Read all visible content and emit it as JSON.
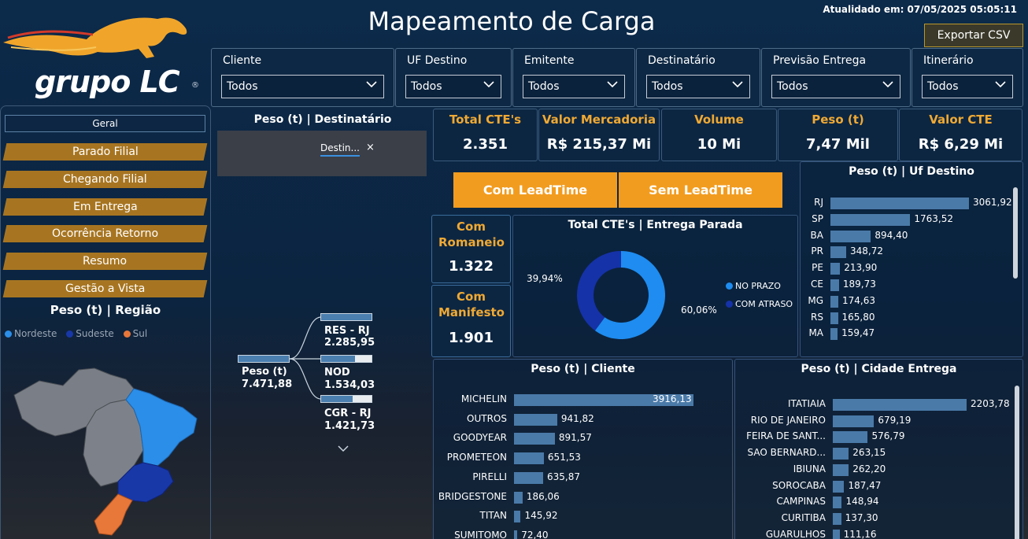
{
  "header": {
    "title": "Mapeamento de Carga",
    "updated": "Atualidado em: 07/05/2025 05:05:11",
    "export_label": "Exportar CSV"
  },
  "logo": {
    "text": "grupo LC",
    "reg": "®"
  },
  "filters": [
    {
      "label": "Cliente",
      "value": "Todos"
    },
    {
      "label": "UF Destino",
      "value": "Todos"
    },
    {
      "label": "Emitente",
      "value": "Todos"
    },
    {
      "label": "Destinatário",
      "value": "Todos"
    },
    {
      "label": "Previsão Entrega",
      "value": "Todos"
    },
    {
      "label": "Itinerário",
      "value": "Todos"
    }
  ],
  "nav": {
    "geral": "Geral",
    "items": [
      "Parado Filial",
      "Chegando Filial",
      "Em Entrega",
      "Ocorrência Retorno",
      "Resumo",
      "Gestão a Vista"
    ]
  },
  "regiao": {
    "title": "Peso (t) | Região",
    "legend": [
      {
        "name": "Nordeste",
        "color": "#2b8ee8"
      },
      {
        "name": "Sudeste",
        "color": "#1838a8"
      },
      {
        "name": "Sul",
        "color": "#e8773a"
      }
    ]
  },
  "tree": {
    "title": "Peso (t) | Destinatário",
    "chip": "Destin...",
    "chip_close": "×",
    "root": {
      "label": "Peso (t)",
      "value": "7.471,88"
    },
    "children": [
      {
        "label": "RES - RJ",
        "value": "2.285,95",
        "fill": 1.0
      },
      {
        "label": "NOD",
        "value": "1.534,03",
        "fill": 0.67
      },
      {
        "label": "CGR - RJ",
        "value": "1.421,73",
        "fill": 0.62
      }
    ]
  },
  "kpis": [
    {
      "label": "Total CTE's",
      "value": "2.351"
    },
    {
      "label": "Valor Mercadoria",
      "value": "R$ 215,37 Mi"
    },
    {
      "label": "Volume",
      "value": "10 Mi"
    },
    {
      "label": "Peso (t)",
      "value": "7,47 Mil"
    },
    {
      "label": "Valor CTE",
      "value": "R$ 6,29 Mi"
    }
  ],
  "lead_buttons": {
    "with": "Com LeadTime",
    "without": "Sem LeadTime"
  },
  "small_kpis": [
    {
      "label": "Com Romaneio",
      "value": "1.322"
    },
    {
      "label": "Com Manifesto",
      "value": "1.901"
    }
  ],
  "colors": {
    "accent": "#f29c1f",
    "bar": "#4a7aa8",
    "no_prazo": "#1e8cf0",
    "com_atraso": "#1532a8"
  },
  "chart_data": [
    {
      "type": "pie",
      "title": "Total CTE's | Entrega Parada",
      "series": [
        {
          "name": "NO PRAZO",
          "value": 60.06,
          "label": "60,06%"
        },
        {
          "name": "COM ATRASO",
          "value": 39.94,
          "label": "39,94%"
        }
      ]
    },
    {
      "type": "bar",
      "title": "Peso (t) | Uf Destino",
      "categories": [
        "RJ",
        "SP",
        "BA",
        "PR",
        "PE",
        "CE",
        "MG",
        "RS",
        "MA"
      ],
      "values": [
        3061.92,
        1763.52,
        894.4,
        348.72,
        213.9,
        189.73,
        174.63,
        165.8,
        159.47
      ],
      "labels": [
        "3061,92",
        "1763,52",
        "894,40",
        "348,72",
        "213,90",
        "189,73",
        "174,63",
        "165,80",
        "159,47"
      ]
    },
    {
      "type": "bar",
      "title": "Peso (t) | Cliente",
      "categories": [
        "MICHELIN",
        "OUTROS",
        "GOODYEAR",
        "PROMETEON",
        "PIRELLI",
        "BRIDGESTONE",
        "TITAN",
        "SUMITOMO"
      ],
      "values": [
        3916.13,
        941.82,
        891.57,
        651.53,
        635.87,
        186.06,
        145.92,
        72.4
      ],
      "labels": [
        "3916,13",
        "941,82",
        "891,57",
        "651,53",
        "635,87",
        "186,06",
        "145,92",
        "72,40"
      ]
    },
    {
      "type": "bar",
      "title": "Peso (t) | Cidade Entrega",
      "categories": [
        "ITATIAIA",
        "RIO DE JANEIRO",
        "FEIRA DE SANT...",
        "SAO BERNARD...",
        "IBIUNA",
        "SOROCABA",
        "CAMPINAS",
        "CURITIBA",
        "GUARULHOS"
      ],
      "values": [
        2203.78,
        679.19,
        576.79,
        263.15,
        262.2,
        187.47,
        148.94,
        137.3,
        111.16
      ],
      "labels": [
        "2203,78",
        "679,19",
        "576,79",
        "263,15",
        "262,20",
        "187,47",
        "148,94",
        "137,30",
        "111,16"
      ]
    }
  ]
}
